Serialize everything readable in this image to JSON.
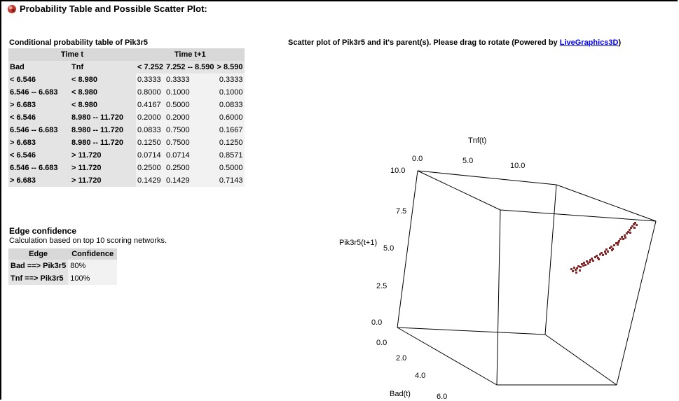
{
  "header": {
    "title": "Probability Table and Possible Scatter Plot:"
  },
  "cpt": {
    "caption": "Conditional probability table of Pik3r5",
    "group_headers": [
      "Time t",
      "Time t+1"
    ],
    "columns": [
      "Bad",
      "Tnf",
      "< 7.252",
      "7.252 -- 8.590",
      "> 8.590"
    ],
    "rows": [
      [
        "< 6.546",
        "< 8.980",
        "0.3333",
        "0.3333",
        "0.3333"
      ],
      [
        "6.546 -- 6.683",
        "< 8.980",
        "0.8000",
        "0.1000",
        "0.1000"
      ],
      [
        "> 6.683",
        "< 8.980",
        "0.4167",
        "0.5000",
        "0.0833"
      ],
      [
        "< 6.546",
        "8.980 -- 11.720",
        "0.2000",
        "0.2000",
        "0.6000"
      ],
      [
        "6.546 -- 6.683",
        "8.980 -- 11.720",
        "0.0833",
        "0.7500",
        "0.1667"
      ],
      [
        "> 6.683",
        "8.980 -- 11.720",
        "0.1250",
        "0.7500",
        "0.1250"
      ],
      [
        "< 6.546",
        "> 11.720",
        "0.0714",
        "0.0714",
        "0.8571"
      ],
      [
        "6.546 -- 6.683",
        "> 11.720",
        "0.2500",
        "0.2500",
        "0.5000"
      ],
      [
        "> 6.683",
        "> 11.720",
        "0.1429",
        "0.1429",
        "0.7143"
      ]
    ]
  },
  "edge_confidence": {
    "heading": "Edge confidence",
    "subtitle": "Calculation based on top 10 scoring networks.",
    "columns": [
      "Edge",
      "Confidence"
    ],
    "rows": [
      [
        "Bad ==> Pik3r5",
        "80%"
      ],
      [
        "Tnf ==> Pik3r5",
        "100%"
      ]
    ]
  },
  "scatter": {
    "caption_prefix": "Scatter plot of Pik3r5 and it's parent(s). Please drag to rotate (Powered by ",
    "link_text": "LiveGraphics3D",
    "caption_suffix": ")",
    "point_color": "#8b2a2a",
    "axis_labels": {
      "tnf": "Tnf(t)",
      "pik": "Pik3r5(t+1)",
      "bad": "Bad(t)"
    },
    "tnf_ticks": [
      "0.0",
      "5.0",
      "10.0"
    ],
    "pik_ticks": [
      "10.0",
      "7.5",
      "5.0",
      "2.5",
      "0.0"
    ],
    "bad_ticks": [
      "0.0",
      "2.0",
      "4.0",
      "6.0"
    ]
  }
}
